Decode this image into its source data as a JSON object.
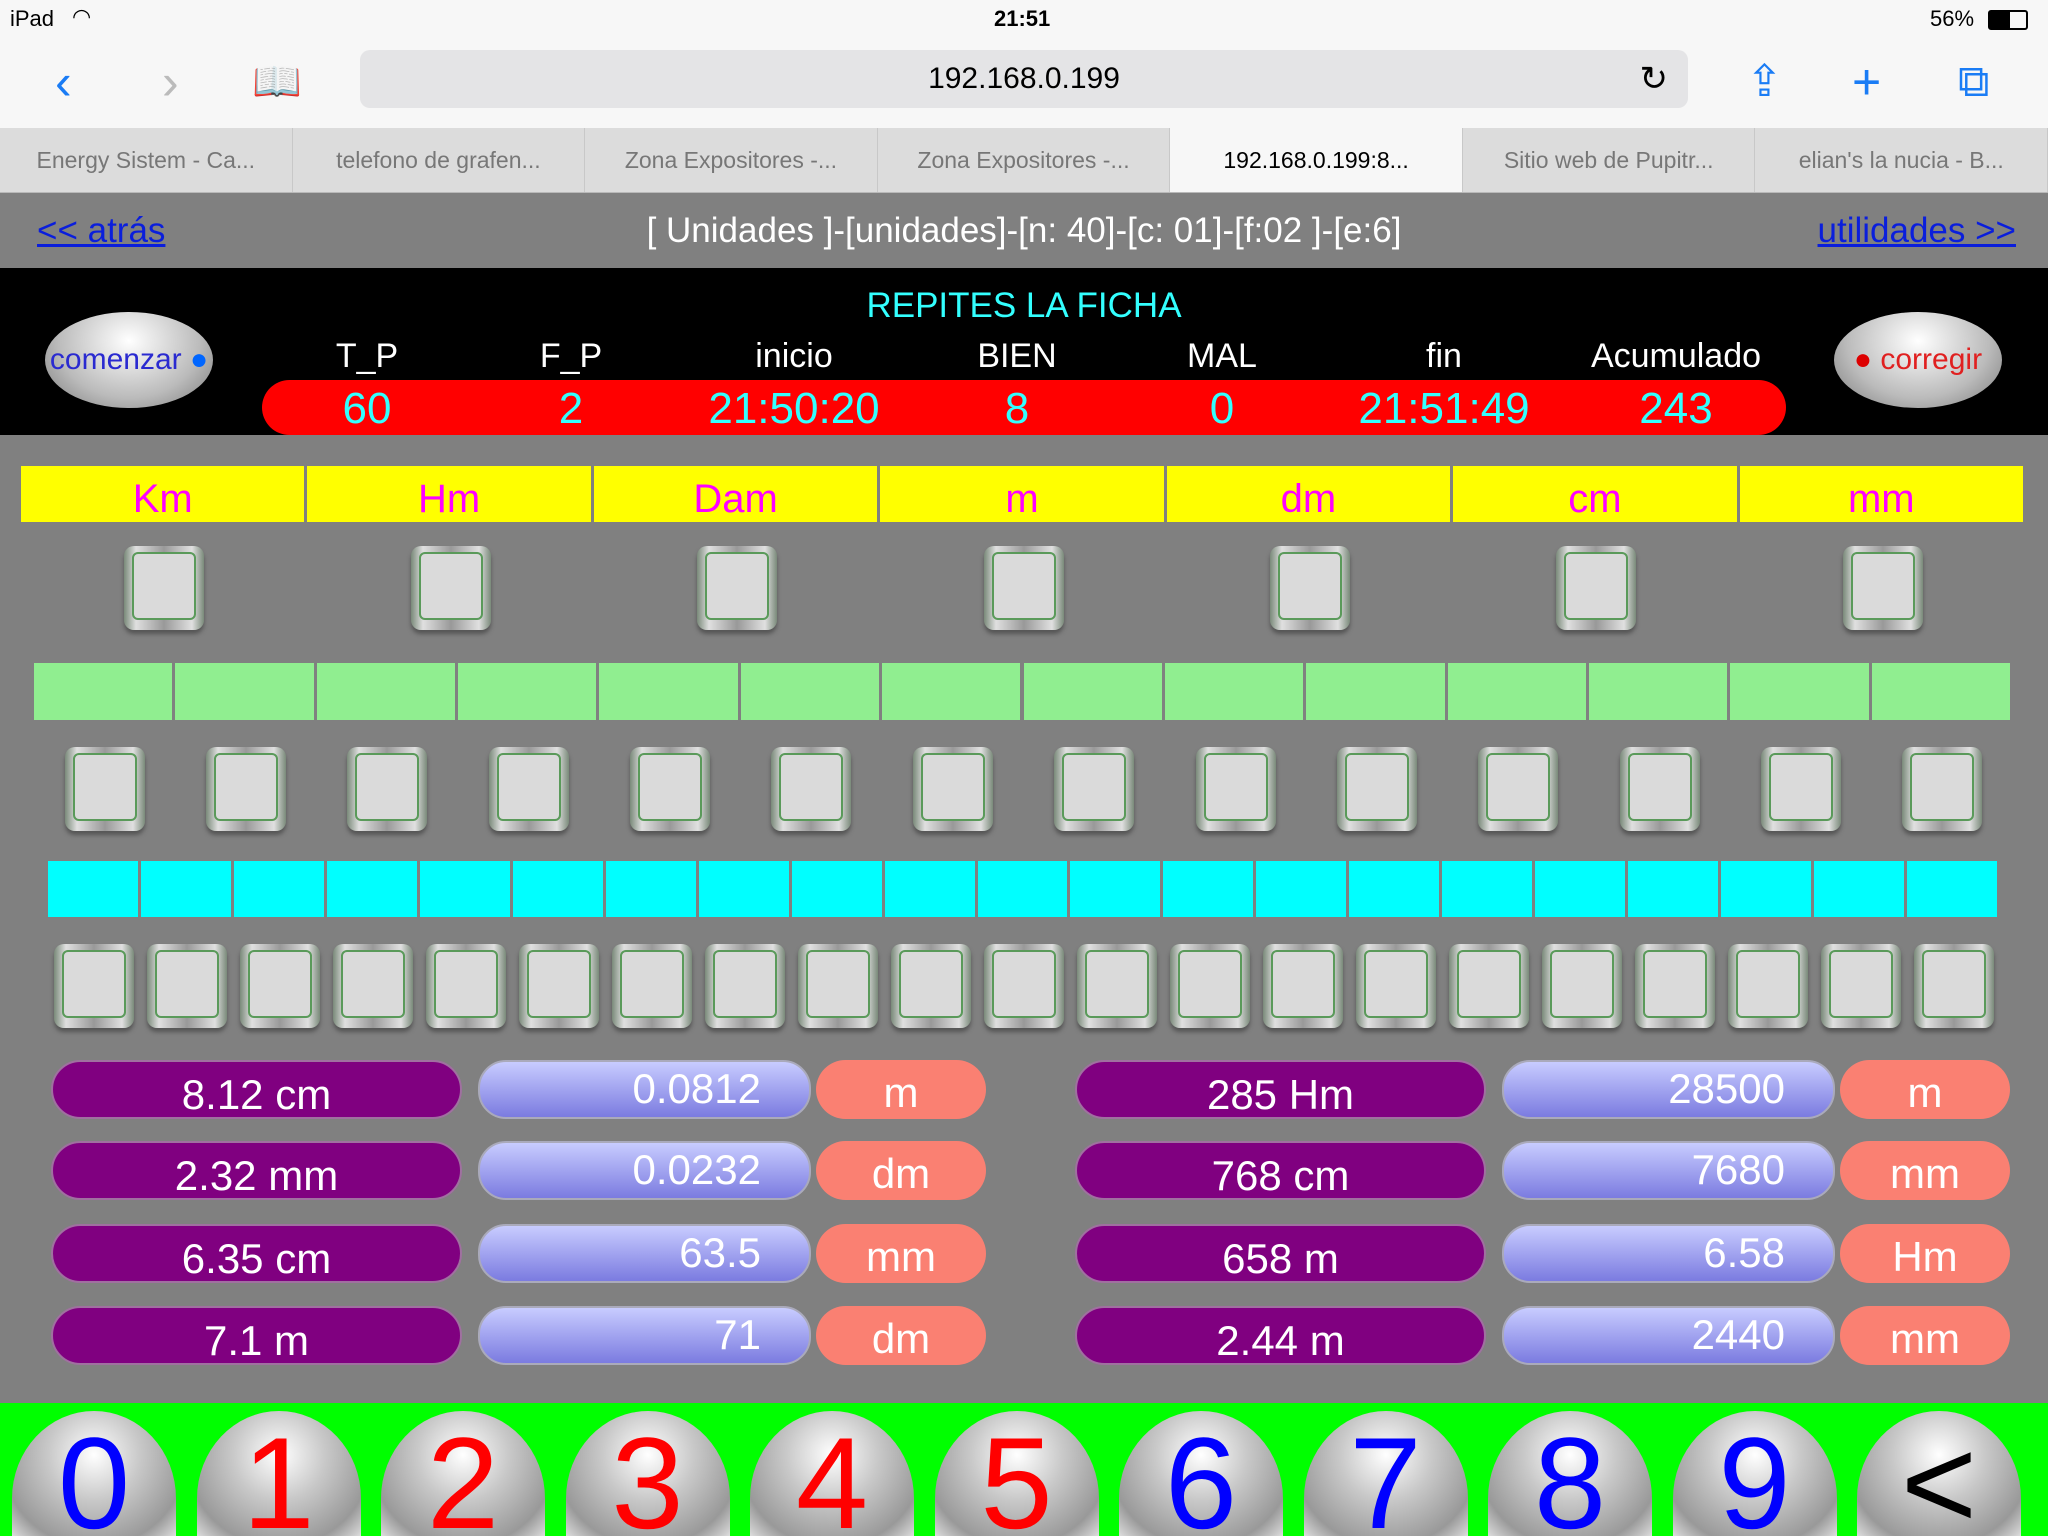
{
  "status": {
    "device": "iPad",
    "time": "21:51",
    "battery": "56%"
  },
  "browser": {
    "url": "192.168.0.199",
    "tabs": [
      {
        "label": "Energy Sistem - Ca..."
      },
      {
        "label": "telefono de grafen..."
      },
      {
        "label": "Zona Expositores -..."
      },
      {
        "label": "Zona Expositores -..."
      },
      {
        "label": "192.168.0.199:8...",
        "active": true
      },
      {
        "label": "Sitio web de Pupitr..."
      },
      {
        "label": "elian's la nucia - B..."
      }
    ]
  },
  "nav": {
    "back": "<< atrás",
    "title": "[ Unidades ]-[unidades]-[n: 40]-[c: 01]-[f:02 ]-[e:6]",
    "next": "utilidades >>"
  },
  "panel": {
    "message": "REPITES LA FICHA",
    "start": "comenzar",
    "correct": "corregir",
    "headers": [
      "T_P",
      "F_P",
      "inicio",
      "BIEN",
      "MAL",
      "fin",
      "Acumulado"
    ],
    "values": [
      "60",
      "2",
      "21:50:20",
      "8",
      "0",
      "21:51:49",
      "243"
    ]
  },
  "units": [
    "Km",
    "Hm",
    "Dam",
    "m",
    "dm",
    "cm",
    "mm"
  ],
  "rows": {
    "green_cells": 14,
    "cyan_cells": 21
  },
  "conversions": [
    {
      "given": "8.12 cm",
      "answer": "0.0812",
      "unit": "m"
    },
    {
      "given": "285 Hm",
      "answer": "28500",
      "unit": "m"
    },
    {
      "given": "2.32 mm",
      "answer": "0.0232",
      "unit": "dm"
    },
    {
      "given": "768 cm",
      "answer": "7680",
      "unit": "mm"
    },
    {
      "given": "6.35 cm",
      "answer": "63.5",
      "unit": "mm"
    },
    {
      "given": "658 m",
      "answer": "6.58",
      "unit": "Hm"
    },
    {
      "given": "7.1 m",
      "answer": "71",
      "unit": "dm"
    },
    {
      "given": "2.44 m",
      "answer": "2440",
      "unit": "mm"
    }
  ],
  "keypad": [
    {
      "label": "0",
      "color": "#0000ff"
    },
    {
      "label": "1",
      "color": "#ff0000"
    },
    {
      "label": "2",
      "color": "#ff0000"
    },
    {
      "label": "3",
      "color": "#ff0000"
    },
    {
      "label": "4",
      "color": "#ff0000"
    },
    {
      "label": "5",
      "color": "#ff0000"
    },
    {
      "label": "6",
      "color": "#0000ff"
    },
    {
      "label": "7",
      "color": "#0000ff"
    },
    {
      "label": "8",
      "color": "#0000ff"
    },
    {
      "label": "9",
      "color": "#0000ff"
    },
    {
      "label": "<",
      "color": "#000000"
    }
  ]
}
